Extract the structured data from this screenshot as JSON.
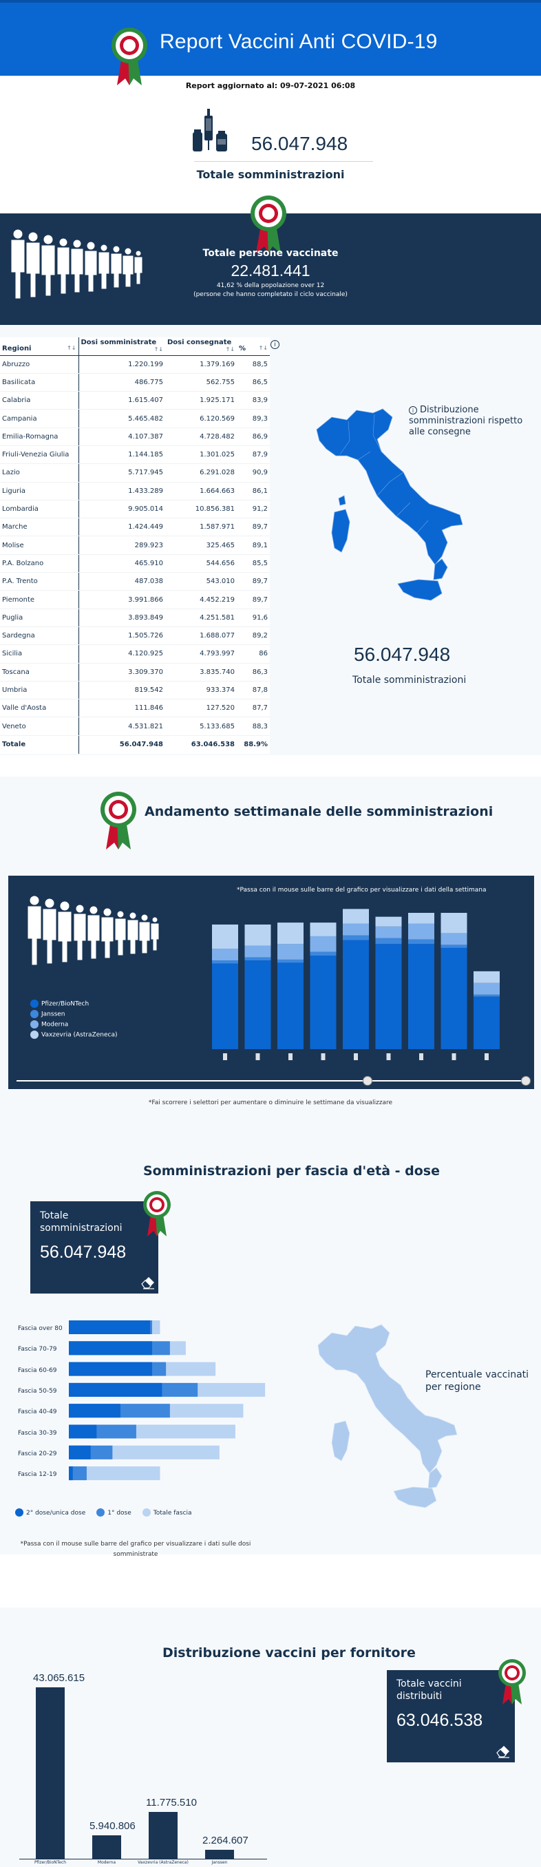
{
  "header": {
    "title": "Report Vaccini Anti COVID-19",
    "updated": "Report aggiornato al: 09-07-2021 06:08"
  },
  "summary": {
    "total_administrations": "56.047.948",
    "total_administrations_label": "Totale somministrazioni"
  },
  "persons": {
    "title": "Totale persone vaccinate",
    "count": "22.481.441",
    "pct_text": "41,62 % della popolazione over 12",
    "note": "(persone che hanno completato il ciclo vaccinale)"
  },
  "region_table": {
    "headers": {
      "region": "Regioni",
      "administered": "Dosi somministrate",
      "delivered": "Dosi consegnate",
      "pct": "%"
    },
    "rows": [
      {
        "region": "Abruzzo",
        "administered": "1.220.199",
        "delivered": "1.379.169",
        "pct": "88,5"
      },
      {
        "region": "Basilicata",
        "administered": "486.775",
        "delivered": "562.755",
        "pct": "86,5"
      },
      {
        "region": "Calabria",
        "administered": "1.615.407",
        "delivered": "1.925.171",
        "pct": "83,9"
      },
      {
        "region": "Campania",
        "administered": "5.465.482",
        "delivered": "6.120.569",
        "pct": "89,3"
      },
      {
        "region": "Emilia-Romagna",
        "administered": "4.107.387",
        "delivered": "4.728.482",
        "pct": "86,9"
      },
      {
        "region": "Friuli-Venezia Giulia",
        "administered": "1.144.185",
        "delivered": "1.301.025",
        "pct": "87,9"
      },
      {
        "region": "Lazio",
        "administered": "5.717.945",
        "delivered": "6.291.028",
        "pct": "90,9"
      },
      {
        "region": "Liguria",
        "administered": "1.433.289",
        "delivered": "1.664.663",
        "pct": "86,1"
      },
      {
        "region": "Lombardia",
        "administered": "9.905.014",
        "delivered": "10.856.381",
        "pct": "91,2"
      },
      {
        "region": "Marche",
        "administered": "1.424.449",
        "delivered": "1.587.971",
        "pct": "89,7"
      },
      {
        "region": "Molise",
        "administered": "289.923",
        "delivered": "325.465",
        "pct": "89,1"
      },
      {
        "region": "P.A. Bolzano",
        "administered": "465.910",
        "delivered": "544.656",
        "pct": "85,5"
      },
      {
        "region": "P.A. Trento",
        "administered": "487.038",
        "delivered": "543.010",
        "pct": "89,7"
      },
      {
        "region": "Piemonte",
        "administered": "3.991.866",
        "delivered": "4.452.219",
        "pct": "89,7"
      },
      {
        "region": "Puglia",
        "administered": "3.893.849",
        "delivered": "4.251.581",
        "pct": "91,6"
      },
      {
        "region": "Sardegna",
        "administered": "1.505.726",
        "delivered": "1.688.077",
        "pct": "89,2"
      },
      {
        "region": "Sicilia",
        "administered": "4.120.925",
        "delivered": "4.793.997",
        "pct": "86"
      },
      {
        "region": "Toscana",
        "administered": "3.309.370",
        "delivered": "3.835.740",
        "pct": "86,3"
      },
      {
        "region": "Umbria",
        "administered": "819.542",
        "delivered": "933.374",
        "pct": "87,8"
      },
      {
        "region": "Valle d'Aosta",
        "administered": "111.846",
        "delivered": "127.520",
        "pct": "87,7"
      },
      {
        "region": "Veneto",
        "administered": "4.531.821",
        "delivered": "5.133.685",
        "pct": "88,3"
      }
    ],
    "total": {
      "region": "Totale",
      "administered": "56.047.948",
      "delivered": "63.046.538",
      "pct": "88.9%"
    }
  },
  "map": {
    "label": "Distribuzione somministrazioni rispetto alle consegne",
    "total_num": "56.047.948",
    "total_label": "Totale somministrazioni"
  },
  "weekly": {
    "title": "Andamento settimanale delle somministrazioni",
    "hint": "*Passa con il mouse sulle barre del grafico per visualizzare i dati della settimana",
    "selector_note": "*Fai scorrere i selettori per aumentare o diminuire le settimane da visualizzare",
    "legend": [
      {
        "name": "Pfizer/BioNTech",
        "color": "#0a66d1"
      },
      {
        "name": "Janssen",
        "color": "#3d87dd"
      },
      {
        "name": "Moderna",
        "color": "#7fb0ec"
      },
      {
        "name": "Vaxzevria (AstraZeneca)",
        "color": "#b9d3f3"
      }
    ]
  },
  "age": {
    "title": "Somministrazioni per fascia d'età - dose",
    "total_label": "Totale somministrazioni",
    "total_num": "56.047.948",
    "map_label": "Percentuale vaccinati per regione",
    "legend": [
      {
        "name": "2° dose/unica dose",
        "color": "#0a66d1"
      },
      {
        "name": "1° dose",
        "color": "#3d87dd"
      },
      {
        "name": "Totale fascia",
        "color": "#b9d3f3"
      }
    ],
    "hint": "*Passa con il mouse sulle barre del grafico per visualizzare i dati sulle dosi somministrate"
  },
  "supplier": {
    "title": "Distribuzione vaccini per fornitore",
    "total_label": "Totale vaccini distribuiti",
    "total_num": "63.046.538"
  },
  "chart_data": [
    {
      "type": "bar",
      "title": "Andamento settimanale delle somministrazioni",
      "stacked": true,
      "categories": [
        "",
        "",
        "",
        "",
        "",
        "",
        "",
        "",
        ""
      ],
      "series": [
        {
          "name": "Pfizer/BioNTech",
          "values": [
            2.2,
            2.28,
            2.22,
            2.4,
            2.8,
            2.7,
            2.7,
            2.6,
            1.35
          ]
        },
        {
          "name": "Janssen",
          "values": [
            0.08,
            0.08,
            0.08,
            0.1,
            0.12,
            0.15,
            0.12,
            0.08,
            0.05
          ]
        },
        {
          "name": "Moderna",
          "values": [
            0.3,
            0.3,
            0.4,
            0.4,
            0.3,
            0.3,
            0.4,
            0.3,
            0.3
          ]
        },
        {
          "name": "Vaxzevria (AstraZeneca)",
          "values": [
            0.62,
            0.54,
            0.55,
            0.35,
            0.38,
            0.25,
            0.28,
            0.52,
            0.3
          ]
        }
      ],
      "ylim": [
        0,
        3.5
      ],
      "legend": "left"
    },
    {
      "type": "bar",
      "orientation": "horizontal",
      "title": "Somministrazioni per fascia d'età - dose",
      "categories": [
        "Fascia over 80",
        "Fascia 70-79",
        "Fascia 60-69",
        "Fascia 50-59",
        "Fascia 40-49",
        "Fascia 30-39",
        "Fascia 20-29",
        "Fascia 12-19"
      ],
      "series": [
        {
          "name": "2° dose/unica dose",
          "values": [
            4.1,
            4.2,
            4.2,
            4.7,
            2.6,
            1.4,
            1.1,
            0.2
          ]
        },
        {
          "name": "1° dose",
          "values": [
            4.2,
            5.1,
            4.9,
            6.5,
            5.1,
            3.4,
            2.2,
            0.9
          ]
        },
        {
          "name": "Totale fascia",
          "values": [
            4.6,
            5.9,
            7.4,
            9.9,
            8.8,
            8.4,
            7.6,
            4.6
          ]
        }
      ],
      "xlim": [
        0,
        10
      ],
      "legend": "bottom"
    },
    {
      "type": "bar",
      "title": "Distribuzione vaccini per fornitore",
      "categories": [
        "Pfizer/BioNTech",
        "Moderna",
        "Vaxzevria (AstraZeneca)",
        "Janssen"
      ],
      "values": [
        43065615,
        5940806,
        11775510,
        2264607
      ],
      "value_labels": [
        "43.065.615",
        "5.940.806",
        "11.775.510",
        "2.264.607"
      ],
      "ylim": [
        0,
        45000000
      ]
    }
  ]
}
